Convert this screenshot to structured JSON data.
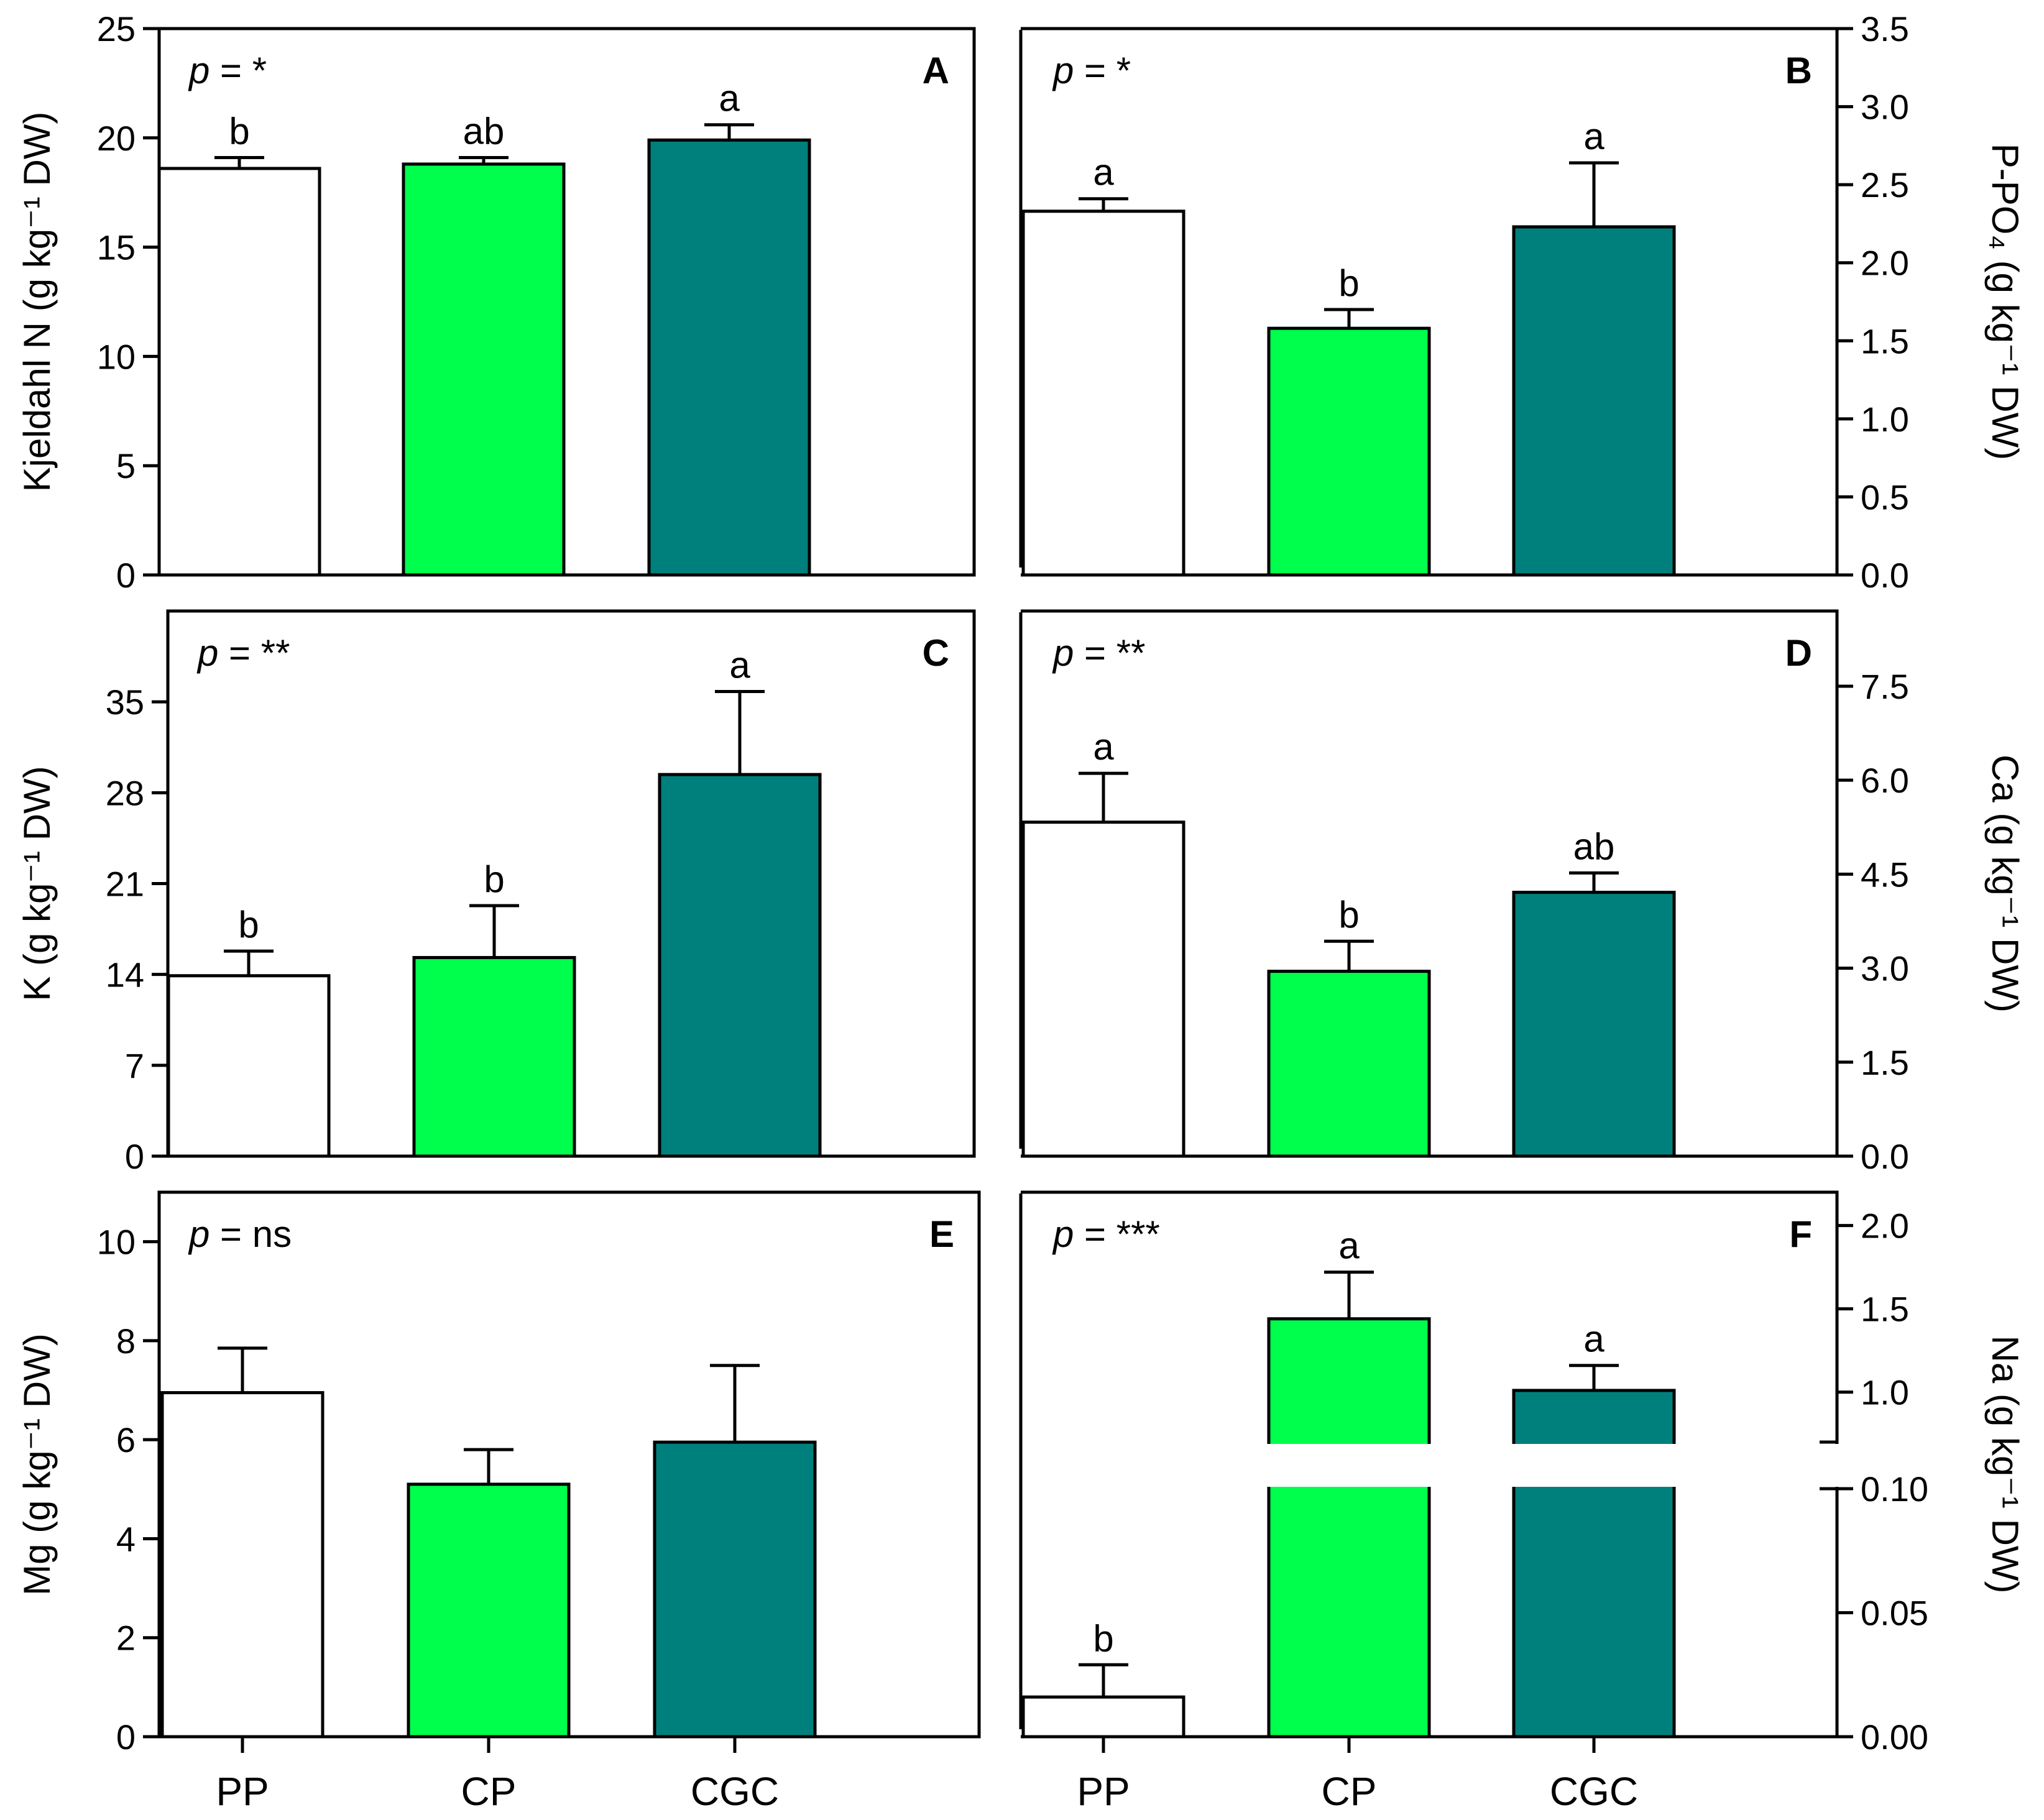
{
  "colors": {
    "PP": "#ffffff",
    "CP": "#00ff4c",
    "CGC": "#00807c",
    "stroke": "#000000"
  },
  "categories": [
    "PP",
    "CP",
    "CGC"
  ],
  "chart_data": [
    {
      "type": "bar",
      "panel": "A",
      "ylabel": "Kjeldahl N (g kg⁻¹ DW)",
      "axis_side": "left",
      "pvalue": "p = *",
      "ylim": [
        0,
        25
      ],
      "yticks": [
        0,
        5,
        10,
        15,
        20,
        25
      ],
      "categories": [
        "PP",
        "CP",
        "CGC"
      ],
      "values": [
        18.6,
        18.8,
        19.9
      ],
      "errors": [
        0.5,
        0.3,
        0.7
      ],
      "letters": [
        "b",
        "ab",
        "a"
      ]
    },
    {
      "type": "bar",
      "panel": "B",
      "ylabel": "P-PO₄ (g kg⁻¹ DW)",
      "axis_side": "right",
      "pvalue": "p = *",
      "ylim": [
        0,
        3.5
      ],
      "yticks": [
        0.0,
        0.5,
        1.0,
        1.5,
        2.0,
        2.5,
        3.0,
        3.5
      ],
      "categories": [
        "PP",
        "CP",
        "CGC"
      ],
      "values": [
        2.33,
        1.58,
        2.23
      ],
      "errors": [
        0.08,
        0.12,
        0.41
      ],
      "letters": [
        "a",
        "b",
        "a"
      ]
    },
    {
      "type": "bar",
      "panel": "C",
      "ylabel": "K (g kg⁻¹ DW)",
      "axis_side": "left",
      "pvalue": "p = **",
      "ylim": [
        0,
        42
      ],
      "yticks": [
        0,
        7,
        14,
        21,
        28,
        35
      ],
      "categories": [
        "PP",
        "CP",
        "CGC"
      ],
      "values": [
        13.9,
        15.3,
        29.4
      ],
      "errors": [
        1.9,
        4.0,
        6.4
      ],
      "letters": [
        "b",
        "b",
        "a"
      ]
    },
    {
      "type": "bar",
      "panel": "D",
      "ylabel": "Ca (g kg⁻¹ DW)",
      "axis_side": "right",
      "pvalue": "p = **",
      "ylim": [
        0,
        8.7
      ],
      "yticks": [
        0.0,
        1.5,
        3.0,
        4.5,
        6.0,
        7.5
      ],
      "categories": [
        "PP",
        "CP",
        "CGC"
      ],
      "values": [
        5.33,
        2.95,
        4.21
      ],
      "errors": [
        0.78,
        0.48,
        0.31
      ],
      "letters": [
        "a",
        "b",
        "ab"
      ]
    },
    {
      "type": "bar",
      "panel": "E",
      "ylabel": "Mg (g kg⁻¹ DW)",
      "axis_side": "left",
      "pvalue": "p = ns",
      "ylim": [
        0,
        11
      ],
      "yticks": [
        0,
        2,
        4,
        6,
        8,
        10
      ],
      "categories": [
        "PP",
        "CP",
        "CGC"
      ],
      "values": [
        6.95,
        5.1,
        5.95
      ],
      "errors": [
        0.9,
        0.7,
        1.55
      ],
      "letters": [
        "",
        "",
        ""
      ]
    },
    {
      "type": "bar",
      "panel": "F",
      "ylabel": "Na (g kg⁻¹ DW)",
      "axis_side": "right",
      "pvalue": "p = ***",
      "broken_axis": true,
      "lower_range": [
        0,
        0.1
      ],
      "lower_ticks": [
        "0.00",
        "0.05",
        "0.10"
      ],
      "upper_range": [
        0.7,
        2.2
      ],
      "upper_ticks": [
        "1.0",
        "1.5",
        "2.0"
      ],
      "categories": [
        "PP",
        "CP",
        "CGC"
      ],
      "values": [
        0.016,
        1.44,
        1.01
      ],
      "errors": [
        0.013,
        0.28,
        0.15
      ],
      "letters": [
        "b",
        "a",
        "a"
      ]
    }
  ]
}
